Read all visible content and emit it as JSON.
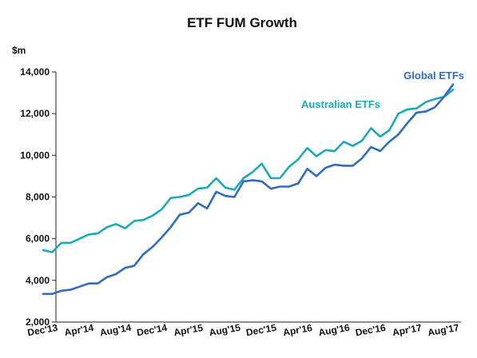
{
  "chart_data": {
    "type": "line",
    "title": "ETF FUM Growth",
    "ylabel": "$m",
    "xlabel": "",
    "ylim": [
      2000,
      14000
    ],
    "yticks": [
      2000,
      4000,
      6000,
      8000,
      10000,
      12000,
      14000
    ],
    "ytick_labels": [
      "2,000",
      "4,000",
      "6,000",
      "8,000",
      "10,000",
      "12,000",
      "14,000"
    ],
    "grid": false,
    "legend": "inline labels at top-right",
    "x_tick_labels": [
      {
        "label": "Dec'13",
        "index": 0
      },
      {
        "label": "Apr'14",
        "index": 4
      },
      {
        "label": "Aug'14",
        "index": 8
      },
      {
        "label": "Dec'14",
        "index": 12
      },
      {
        "label": "Apr'15",
        "index": 16
      },
      {
        "label": "Aug'15",
        "index": 20
      },
      {
        "label": "Dec'15",
        "index": 24
      },
      {
        "label": "Apr'16",
        "index": 28
      },
      {
        "label": "Aug'16",
        "index": 32
      },
      {
        "label": "Dec'16",
        "index": 36
      },
      {
        "label": "Apr'17",
        "index": 40
      },
      {
        "label": "Aug'17",
        "index": 44
      }
    ],
    "series": [
      {
        "name": "Australian ETFs",
        "color": "#1ba8b8",
        "values": [
          5450,
          5350,
          5800,
          5800,
          6000,
          6200,
          6250,
          6550,
          6700,
          6500,
          6850,
          6900,
          7100,
          7400,
          7950,
          8000,
          8100,
          8400,
          8450,
          8900,
          8450,
          8350,
          8900,
          9200,
          9600,
          8900,
          8900,
          9450,
          9800,
          10350,
          9950,
          10250,
          10200,
          10650,
          10450,
          10700,
          11300,
          10900,
          11200,
          12000,
          12200,
          12250,
          12550,
          12700,
          12800,
          13150
        ]
      },
      {
        "name": "Global ETFs",
        "color": "#2f6cc0",
        "values": [
          3350,
          3350,
          3500,
          3550,
          3700,
          3850,
          3850,
          4150,
          4300,
          4600,
          4700,
          5250,
          5600,
          6050,
          6550,
          7150,
          7250,
          7700,
          7450,
          8250,
          8050,
          8000,
          8750,
          8800,
          8750,
          8400,
          8500,
          8500,
          8650,
          9350,
          9000,
          9400,
          9550,
          9500,
          9500,
          9850,
          10400,
          10200,
          10650,
          11000,
          11550,
          12050,
          12100,
          12300,
          12800,
          13400
        ]
      }
    ]
  }
}
